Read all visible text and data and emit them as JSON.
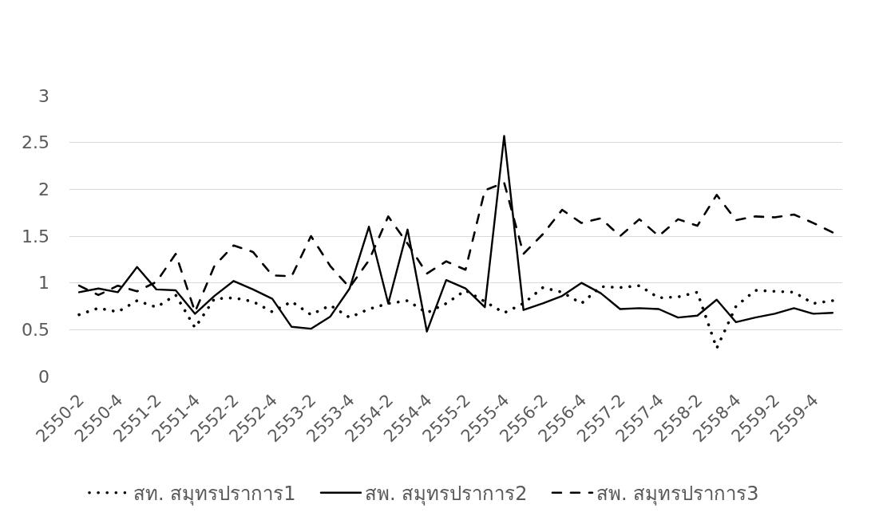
{
  "chart_data": {
    "type": "line",
    "categories": [
      "2550-2",
      null,
      "2550-4",
      null,
      "2551-2",
      null,
      "2551-4",
      null,
      "2552-2",
      null,
      "2552-4",
      null,
      "2553-2",
      null,
      "2553-4",
      null,
      "2554-2",
      null,
      "2554-4",
      null,
      "2555-2",
      null,
      "2555-4",
      null,
      "2556-2",
      null,
      "2556-4",
      null,
      "2557-2",
      null,
      "2557-4",
      null,
      "2558-2",
      null,
      "2558-4",
      null,
      "2559-2",
      null,
      "2559-4",
      null
    ],
    "series": [
      {
        "name": "สท. สมุทรปราการ1",
        "color": "#000000",
        "line_style": "dotted",
        "values": [
          0.66,
          0.73,
          0.69,
          0.81,
          0.74,
          0.87,
          0.52,
          0.83,
          0.84,
          0.8,
          0.69,
          0.8,
          0.66,
          0.76,
          0.63,
          0.72,
          0.78,
          0.81,
          0.68,
          0.78,
          0.92,
          0.8,
          0.68,
          0.78,
          0.95,
          0.9,
          0.78,
          0.96,
          0.95,
          0.97,
          0.84,
          0.85,
          0.9,
          0.3,
          0.75,
          0.92,
          0.91,
          0.9,
          0.78,
          0.81
        ]
      },
      {
        "name": "สพ. สมุทรปราการ2",
        "color": "#000000",
        "line_style": "solid",
        "values": [
          0.9,
          0.94,
          0.9,
          1.17,
          0.93,
          0.92,
          0.67,
          0.86,
          1.02,
          0.93,
          0.83,
          0.53,
          0.51,
          0.64,
          0.94,
          1.6,
          0.78,
          1.57,
          0.48,
          1.03,
          0.94,
          0.74,
          2.57,
          0.71,
          0.78,
          0.86,
          1.0,
          0.89,
          0.72,
          0.73,
          0.72,
          0.63,
          0.65,
          0.82,
          0.58,
          0.63,
          0.67,
          0.73,
          0.67,
          0.68
        ]
      },
      {
        "name": "สพ. สมุทรปราการ3",
        "color": "#000000",
        "line_style": "dashed",
        "values": [
          0.97,
          0.87,
          0.97,
          0.91,
          1.01,
          1.31,
          0.69,
          1.18,
          1.4,
          1.33,
          1.08,
          1.07,
          1.5,
          1.18,
          0.95,
          1.24,
          1.71,
          1.42,
          1.1,
          1.23,
          1.14,
          1.99,
          2.07,
          1.31,
          1.52,
          1.78,
          1.64,
          1.69,
          1.5,
          1.68,
          1.5,
          1.68,
          1.61,
          1.94,
          1.67,
          1.71,
          1.7,
          1.73,
          1.64,
          1.54
        ]
      }
    ],
    "ylim": [
      0,
      3
    ],
    "yticks": [
      0,
      0.5,
      1,
      1.5,
      2,
      2.5,
      3
    ],
    "grid": "y",
    "legend": "bottom"
  }
}
